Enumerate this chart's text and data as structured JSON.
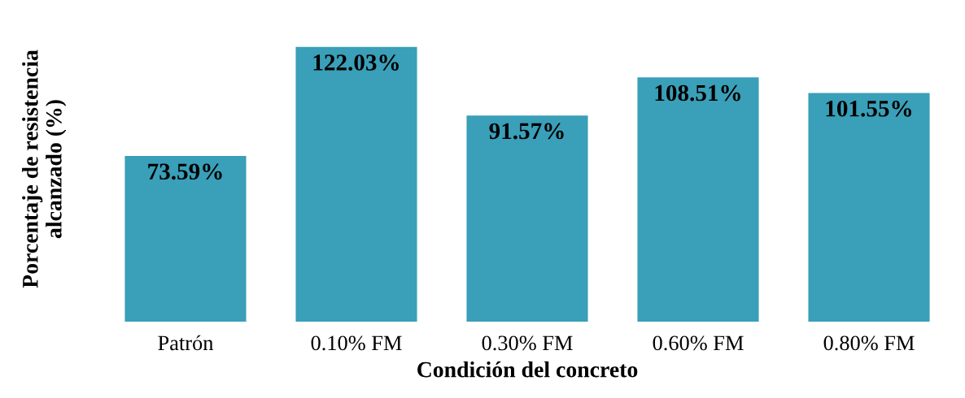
{
  "chart_data": {
    "type": "bar",
    "xlabel": "Condición del concreto",
    "ylabel": "Porcentaje de resistencia\nalcanzado (%)",
    "categories": [
      "Patrón",
      "0.10% FM",
      "0.30% FM",
      "0.60% FM",
      "0.80% FM"
    ],
    "values": [
      73.59,
      122.03,
      91.57,
      108.51,
      101.55
    ],
    "value_labels": [
      "73.59%",
      "122.03%",
      "91.57%",
      "108.51%",
      "101.55%"
    ],
    "color": "#3a9fb8",
    "grid": false,
    "legend": false
  }
}
